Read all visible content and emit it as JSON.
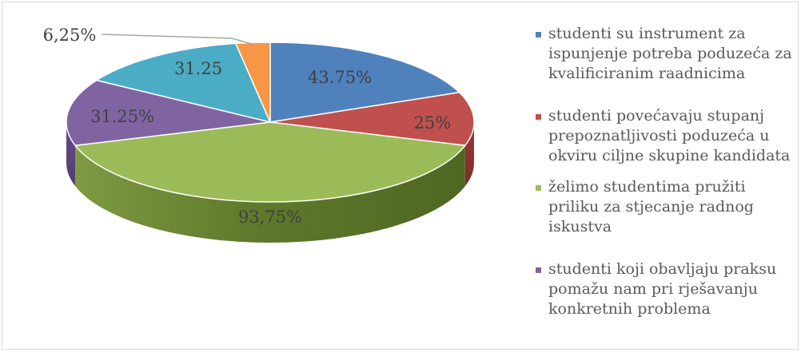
{
  "chart_data": {
    "type": "pie",
    "title": "",
    "style": "3d-pie",
    "slices": [
      {
        "name": "studenti su instrument za ispunjenje potreba poduzeća za kvalificiranim raadnicima",
        "value": 43.75,
        "label": "43.75%",
        "color": "#4F81BD"
      },
      {
        "name": "studenti povećavaju stupanj prepoznatljivosti poduzeća u okviru ciljne skupine kandidata",
        "value": 25,
        "label": "25%",
        "color": "#C0504D"
      },
      {
        "name": "želimo studentima pružiti priliku za stjecanje radnog iskustva",
        "value": 93.75,
        "label": "93,75%",
        "color": "#9BBB59"
      },
      {
        "name": "studenti koji obavljaju praksu pomažu nam pri rješavanju konkretnih problema",
        "value": 31.25,
        "label": "31.25%",
        "color": "#8064A2"
      },
      {
        "name": "",
        "value": 31.25,
        "label": "31.25",
        "color": "#4BACC6"
      },
      {
        "name": "",
        "value": 6.25,
        "label": "6,25%",
        "color": "#F79646"
      }
    ],
    "legend_position": "right"
  }
}
